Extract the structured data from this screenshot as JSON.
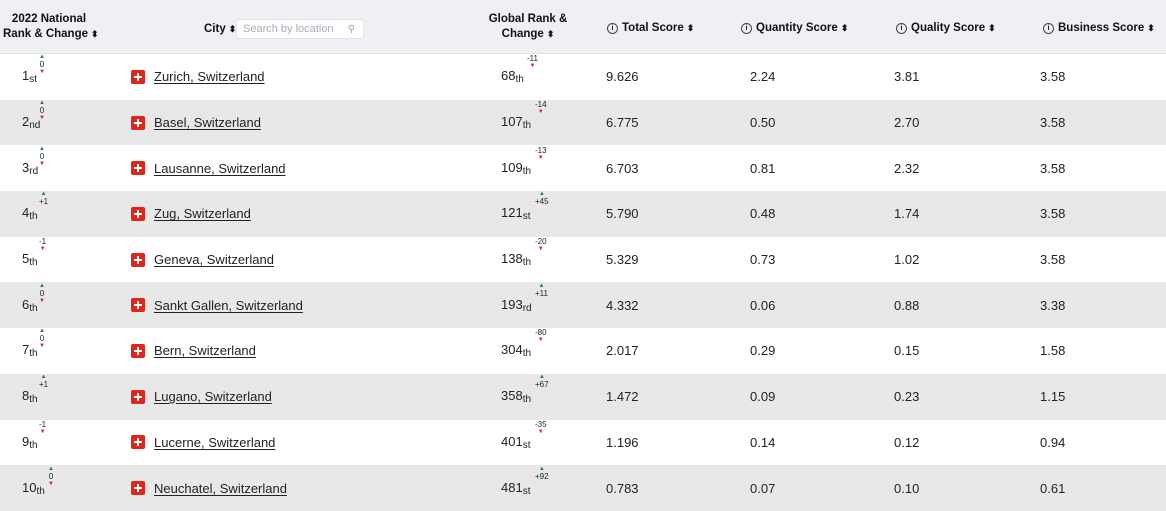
{
  "header": {
    "national_rank_line1": "2022 National",
    "national_rank_line2": "Rank & Change",
    "city": "City",
    "search_placeholder": "Search by location",
    "global_rank_line1": "Global Rank &",
    "global_rank_line2": "Change",
    "total_score": "Total Score",
    "quantity_score": "Quantity Score",
    "quality_score": "Quality Score",
    "business_score": "Business Score",
    "sort_glyph": "⬍",
    "info_glyph": "i"
  },
  "rows": [
    {
      "nat_num": "1",
      "nat_suf": "st",
      "nat_chg": "0",
      "nat_dir": "both",
      "city": "Zurich, Switzerland",
      "glob_num": "68",
      "glob_suf": "th",
      "glob_chg": "-11",
      "glob_dir": "down",
      "total": "9.626",
      "quantity": "2.24",
      "quality": "3.81",
      "business": "3.58"
    },
    {
      "nat_num": "2",
      "nat_suf": "nd",
      "nat_chg": "0",
      "nat_dir": "both",
      "city": "Basel, Switzerland",
      "glob_num": "107",
      "glob_suf": "th",
      "glob_chg": "-14",
      "glob_dir": "down",
      "total": "6.775",
      "quantity": "0.50",
      "quality": "2.70",
      "business": "3.58"
    },
    {
      "nat_num": "3",
      "nat_suf": "rd",
      "nat_chg": "0",
      "nat_dir": "both",
      "city": "Lausanne, Switzerland",
      "glob_num": "109",
      "glob_suf": "th",
      "glob_chg": "-13",
      "glob_dir": "down",
      "total": "6.703",
      "quantity": "0.81",
      "quality": "2.32",
      "business": "3.58"
    },
    {
      "nat_num": "4",
      "nat_suf": "th",
      "nat_chg": "+1",
      "nat_dir": "up",
      "city": "Zug, Switzerland",
      "glob_num": "121",
      "glob_suf": "st",
      "glob_chg": "+45",
      "glob_dir": "up",
      "total": "5.790",
      "quantity": "0.48",
      "quality": "1.74",
      "business": "3.58"
    },
    {
      "nat_num": "5",
      "nat_suf": "th",
      "nat_chg": "-1",
      "nat_dir": "down",
      "city": "Geneva, Switzerland",
      "glob_num": "138",
      "glob_suf": "th",
      "glob_chg": "-20",
      "glob_dir": "down",
      "total": "5.329",
      "quantity": "0.73",
      "quality": "1.02",
      "business": "3.58"
    },
    {
      "nat_num": "6",
      "nat_suf": "th",
      "nat_chg": "0",
      "nat_dir": "both",
      "city": "Sankt Gallen, Switzerland",
      "glob_num": "193",
      "glob_suf": "rd",
      "glob_chg": "+11",
      "glob_dir": "up",
      "total": "4.332",
      "quantity": "0.06",
      "quality": "0.88",
      "business": "3.38"
    },
    {
      "nat_num": "7",
      "nat_suf": "th",
      "nat_chg": "0",
      "nat_dir": "both",
      "city": "Bern, Switzerland",
      "glob_num": "304",
      "glob_suf": "th",
      "glob_chg": "-80",
      "glob_dir": "down",
      "total": "2.017",
      "quantity": "0.29",
      "quality": "0.15",
      "business": "1.58"
    },
    {
      "nat_num": "8",
      "nat_suf": "th",
      "nat_chg": "+1",
      "nat_dir": "up",
      "city": "Lugano, Switzerland",
      "glob_num": "358",
      "glob_suf": "th",
      "glob_chg": "+67",
      "glob_dir": "up",
      "total": "1.472",
      "quantity": "0.09",
      "quality": "0.23",
      "business": "1.15"
    },
    {
      "nat_num": "9",
      "nat_suf": "th",
      "nat_chg": "-1",
      "nat_dir": "down",
      "city": "Lucerne, Switzerland",
      "glob_num": "401",
      "glob_suf": "st",
      "glob_chg": "-35",
      "glob_dir": "down",
      "total": "1.196",
      "quantity": "0.14",
      "quality": "0.12",
      "business": "0.94"
    },
    {
      "nat_num": "10",
      "nat_suf": "th",
      "nat_chg": "0",
      "nat_dir": "both",
      "city": "Neuchatel, Switzerland",
      "glob_num": "481",
      "glob_suf": "st",
      "glob_chg": "+92",
      "glob_dir": "up",
      "total": "0.783",
      "quantity": "0.07",
      "quality": "0.10",
      "business": "0.61"
    }
  ],
  "colors": {
    "row_alt": "#e8e8e8",
    "up": "#1e8a2e",
    "down": "#e02020",
    "flag": "#e1251b",
    "header_bg": "#eef0f4"
  },
  "icons": {
    "flag": "swiss-flag-icon",
    "search": "search-icon",
    "sort": "sort-icon",
    "info": "info-icon"
  }
}
